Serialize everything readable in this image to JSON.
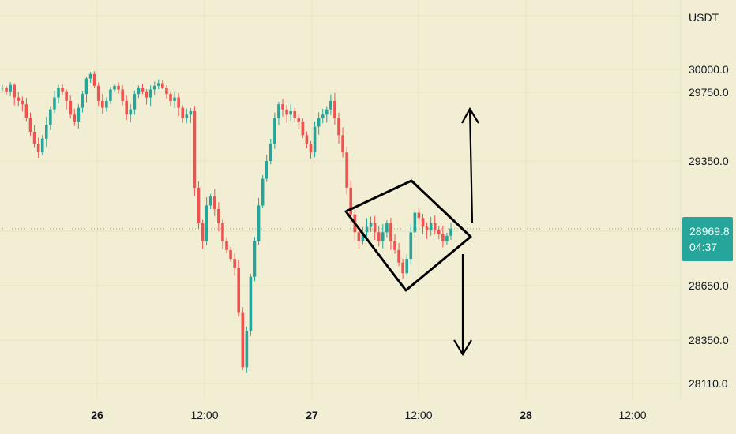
{
  "chart_data": {
    "type": "candlestick",
    "currency": "USDT",
    "y_ticks": [
      "30000.0",
      "29750.0",
      "29350.0",
      "28650.0",
      "28350.0",
      "28110.0"
    ],
    "y_tick_values": [
      30000,
      29750,
      29350,
      28650,
      28350,
      28110
    ],
    "x_ticks": [
      {
        "label": "26",
        "bold": true
      },
      {
        "label": "12:00",
        "bold": false
      },
      {
        "label": "27",
        "bold": true
      },
      {
        "label": "12:00",
        "bold": false
      },
      {
        "label": "28",
        "bold": true
      },
      {
        "label": "12:00",
        "bold": false
      }
    ],
    "last_price": "28969.8",
    "countdown": "04:37",
    "series_close_path": [
      29800,
      29760,
      29830,
      29720,
      29700,
      29680,
      29600,
      29520,
      29450,
      29400,
      29480,
      29560,
      29650,
      29720,
      29800,
      29760,
      29700,
      29620,
      29580,
      29660,
      29740,
      29900,
      29950,
      29820,
      29700,
      29660,
      29700,
      29780,
      29820,
      29780,
      29700,
      29620,
      29650,
      29740,
      29800,
      29760,
      29720,
      29780,
      29820,
      29850,
      29800,
      29740,
      29700,
      29720,
      29660,
      29600,
      29620,
      29640,
      29200,
      29000,
      28900,
      29100,
      29150,
      29080,
      29000,
      28900,
      28850,
      28800,
      28750,
      28500,
      28200,
      28400,
      28700,
      28900,
      29100,
      29250,
      29350,
      29450,
      29600,
      29680,
      29650,
      29620,
      29640,
      29600,
      29580,
      29500,
      29450,
      29400,
      29550,
      29600,
      29620,
      29650,
      29700,
      29600,
      29500,
      29400,
      29200,
      29050,
      28950,
      28900,
      28950,
      28980,
      29000,
      28950,
      28900,
      28950,
      29000,
      28900,
      28850,
      28780,
      28720,
      28800,
      28950,
      29060,
      29030,
      28980,
      28960,
      29000,
      28960,
      28940,
      28900,
      28930,
      28969.8
    ],
    "highlights": {
      "diamond_pattern": "contracting range",
      "arrows": [
        "up",
        "down"
      ]
    }
  }
}
